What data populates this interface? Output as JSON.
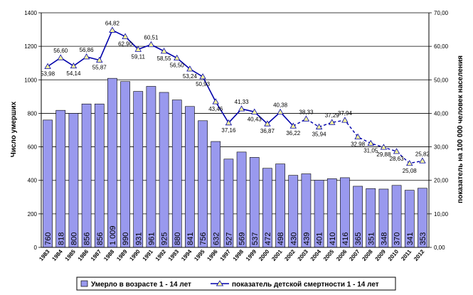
{
  "chart_data": {
    "type": "bar",
    "categories": [
      "1983",
      "1984",
      "1985",
      "1986",
      "1987",
      "1988",
      "1989",
      "1990",
      "1991",
      "1992",
      "1993",
      "1994",
      "1995",
      "1996",
      "1997",
      "1998",
      "1999",
      "2000",
      "2001",
      "2002",
      "2003",
      "2004",
      "2005",
      "2006",
      "2007",
      "2008",
      "2009",
      "2010",
      "2011",
      "2012"
    ],
    "series": [
      {
        "name": "Умерло в возрасте 1 - 14 лет",
        "type": "bar",
        "axis": "left",
        "color": "#9999ee",
        "values": [
          760,
          818,
          800,
          856,
          856,
          1009,
          990,
          931,
          961,
          925,
          880,
          841,
          756,
          632,
          527,
          569,
          537,
          472,
          498,
          430,
          439,
          401,
          410,
          416,
          365,
          351,
          348,
          370,
          341,
          353
        ],
        "labels": [
          "760",
          "818",
          "800",
          "856",
          "856",
          "1 009",
          "990",
          "931",
          "961",
          "925",
          "880",
          "841",
          "756",
          "632",
          "527",
          "569",
          "537",
          "472",
          "498",
          "430",
          "439",
          "401",
          "410",
          "416",
          "365",
          "351",
          "348",
          "370",
          "341",
          "353"
        ]
      },
      {
        "name": "показатель детской смертности  1 - 14 лет",
        "type": "line",
        "axis": "right",
        "color": "#0000aa",
        "values": [
          53.98,
          56.6,
          54.14,
          56.86,
          55.87,
          64.82,
          62.9,
          59.11,
          60.51,
          58.55,
          56.5,
          53.24,
          50.93,
          43.46,
          37.16,
          41.33,
          40.43,
          36.87,
          40.38,
          36.22,
          38.33,
          35.94,
          37.29,
          37.94,
          32.98,
          31.05,
          29.88,
          28.63,
          25.08,
          25.82
        ],
        "labels": [
          "53,98",
          "56,60",
          "54,14",
          "56,86",
          "55,87",
          "64,82",
          "62,90",
          "59,11",
          "60,51",
          "58,55",
          "56,50",
          "53,24",
          "50,93",
          "43,46",
          "37,16",
          "41,33",
          "40,43",
          "36,87",
          "40,38",
          "36,22",
          "38,33",
          "35,94",
          "37,29",
          "37,94",
          "32,98",
          "31,05",
          "29,88",
          "28,63",
          "25,08",
          "25,82"
        ]
      }
    ],
    "ylabel": "Число умерших",
    "y2label": "показатель на 100 000 человек населения",
    "ylim": [
      0,
      1400
    ],
    "y2lim": [
      0,
      70
    ],
    "yticks": [
      "0",
      "200",
      "400",
      "600",
      "800",
      "1000",
      "1200",
      "1400"
    ],
    "y2ticks": [
      "0,00",
      "10,00",
      "20,00",
      "30,00",
      "40,00",
      "50,00",
      "60,00",
      "70,00"
    ],
    "grid": true,
    "legend": "bottom"
  }
}
